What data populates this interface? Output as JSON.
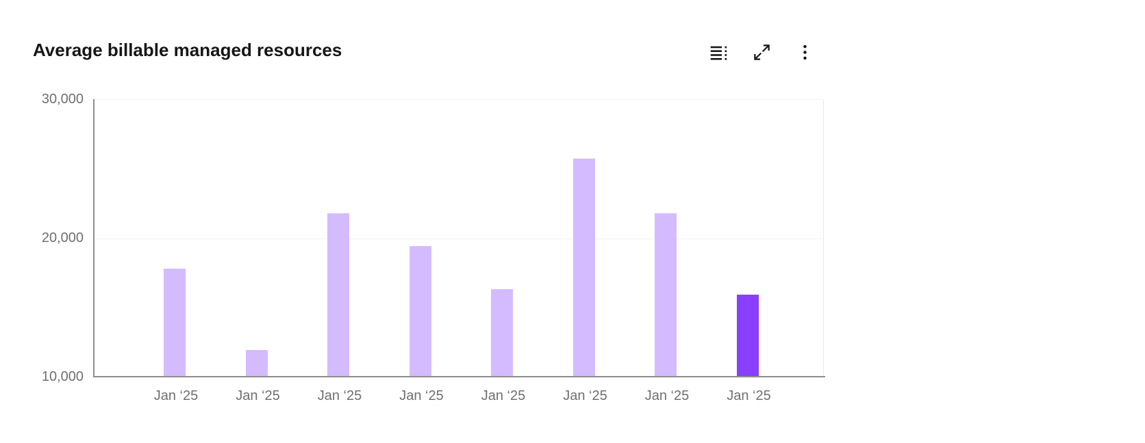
{
  "header": {
    "title": "Average billable managed resources"
  },
  "toolbar": {
    "buttons": [
      {
        "id": "data-table",
        "icon": "data-table-icon"
      },
      {
        "id": "maximize",
        "icon": "maximize-icon"
      },
      {
        "id": "overflow-menu",
        "icon": "overflow-menu-icon"
      }
    ]
  },
  "chart_data": {
    "type": "bar",
    "title": "Average billable managed resources",
    "categories": [
      "Jan ‘25",
      "Jan ‘25",
      "Jan ‘25",
      "Jan ‘25",
      "Jan ‘25",
      "Jan ‘25",
      "Jan ‘25",
      "Jan ‘25"
    ],
    "values": [
      17800,
      11900,
      21800,
      19400,
      16300,
      25700,
      21800,
      15900
    ],
    "xlabel": "",
    "ylabel": "",
    "ylim": [
      10000,
      30000
    ],
    "yticks": [
      "10,000",
      "20,000",
      "30,000"
    ],
    "ytick_values": [
      10000,
      20000,
      30000
    ],
    "grid": "horizontal",
    "legend_position": "none",
    "bar_color": "#d4bbff",
    "highlight_color": "#8a3ffc",
    "highlight_index": 7,
    "axis_color": "#8d8d8d",
    "grid_color": "#f1f1f1",
    "label_color": "#6f6f6f",
    "title_color": "#161616"
  }
}
